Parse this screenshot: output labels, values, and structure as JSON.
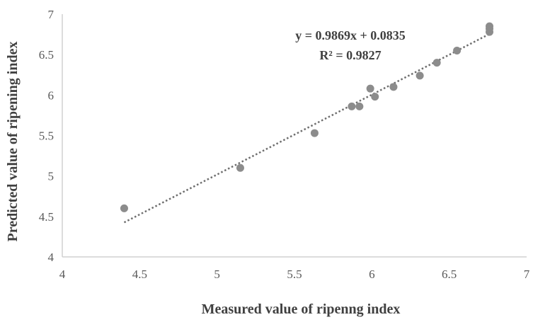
{
  "chart_data": {
    "type": "scatter",
    "xlabel": "Measured value of ripenng index",
    "ylabel": "Predicted value of ripening index",
    "xlim": [
      4,
      7
    ],
    "ylim": [
      4,
      7
    ],
    "x_ticks": [
      4,
      4.5,
      5,
      5.5,
      6,
      6.5,
      7
    ],
    "y_ticks": [
      4,
      4.5,
      5,
      5.5,
      6,
      6.5,
      7
    ],
    "x_tick_labels": [
      "4",
      "4.5",
      "5",
      "5.5",
      "6",
      "6.5",
      "7"
    ],
    "y_tick_labels": [
      "4",
      "4.5",
      "5",
      "5.5",
      "6",
      "6.5",
      "7"
    ],
    "grid": false,
    "legend": "none",
    "points": [
      {
        "x": 4.4,
        "y": 4.6
      },
      {
        "x": 5.15,
        "y": 5.1
      },
      {
        "x": 5.63,
        "y": 5.53
      },
      {
        "x": 5.87,
        "y": 5.86
      },
      {
        "x": 5.92,
        "y": 5.86
      },
      {
        "x": 5.99,
        "y": 6.08
      },
      {
        "x": 6.02,
        "y": 5.98
      },
      {
        "x": 6.14,
        "y": 6.1
      },
      {
        "x": 6.31,
        "y": 6.24
      },
      {
        "x": 6.42,
        "y": 6.4
      },
      {
        "x": 6.55,
        "y": 6.55
      },
      {
        "x": 6.76,
        "y": 6.78
      },
      {
        "x": 6.76,
        "y": 6.82
      },
      {
        "x": 6.76,
        "y": 6.85
      }
    ],
    "trendline": {
      "slope": 0.9869,
      "intercept": 0.0835,
      "x_start": 4.4,
      "x_end": 6.76,
      "style": "dotted"
    },
    "annotations": {
      "equation": "y = 0.9869x + 0.0835",
      "r_squared": "R² = 0.9827"
    },
    "colors": {
      "point": "#8c8c8c",
      "trendline": "#6e6e6e",
      "axis": "#d0d0d0",
      "tick_text": "#595959",
      "label_text": "#404040"
    }
  }
}
